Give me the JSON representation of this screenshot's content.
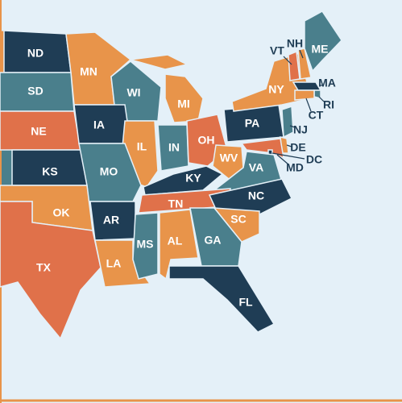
{
  "states": [
    {
      "label": "ND",
      "color": "#1f3d55"
    },
    {
      "label": "MN",
      "color": "#e8944a"
    },
    {
      "label": "SD",
      "color": "#4a7f8c"
    },
    {
      "label": "WI",
      "color": "#4a7f8c"
    },
    {
      "label": "MI",
      "color": "#e8944a"
    },
    {
      "label": "NE",
      "color": "#e0714a"
    },
    {
      "label": "IA",
      "color": "#1f3d55"
    },
    {
      "label": "IL",
      "color": "#e8944a"
    },
    {
      "label": "IN",
      "color": "#4a7f8c"
    },
    {
      "label": "OH",
      "color": "#e0714a"
    },
    {
      "label": "PA",
      "color": "#1f3d55"
    },
    {
      "label": "NY",
      "color": "#e8944a"
    },
    {
      "label": "VT",
      "color": "#e0714a"
    },
    {
      "label": "NH",
      "color": "#e8944a"
    },
    {
      "label": "ME",
      "color": "#4a7f8c"
    },
    {
      "label": "MA",
      "color": "#1f3d55"
    },
    {
      "label": "RI",
      "color": "#4a7f8c"
    },
    {
      "label": "CT",
      "color": "#e8944a"
    },
    {
      "label": "NJ",
      "color": "#4a7f8c"
    },
    {
      "label": "DE",
      "color": "#e8944a"
    },
    {
      "label": "MD",
      "color": "#e0714a"
    },
    {
      "label": "DC",
      "color": "#1f3d55"
    },
    {
      "label": "KS",
      "color": "#1f3d55"
    },
    {
      "label": "MO",
      "color": "#4a7f8c"
    },
    {
      "label": "KY",
      "color": "#1f3d55"
    },
    {
      "label": "WV",
      "color": "#e8944a"
    },
    {
      "label": "VA",
      "color": "#4a7f8c"
    },
    {
      "label": "TN",
      "color": "#e0714a"
    },
    {
      "label": "NC",
      "color": "#1f3d55"
    },
    {
      "label": "OK",
      "color": "#e8944a"
    },
    {
      "label": "AR",
      "color": "#1f3d55"
    },
    {
      "label": "TX",
      "color": "#e0714a"
    },
    {
      "label": "LA",
      "color": "#e8944a"
    },
    {
      "label": "MS",
      "color": "#4a7f8c"
    },
    {
      "label": "AL",
      "color": "#e8944a"
    },
    {
      "label": "GA",
      "color": "#4a7f8c"
    },
    {
      "label": "SC",
      "color": "#e8944a"
    },
    {
      "label": "FL",
      "color": "#1f3d55"
    }
  ]
}
